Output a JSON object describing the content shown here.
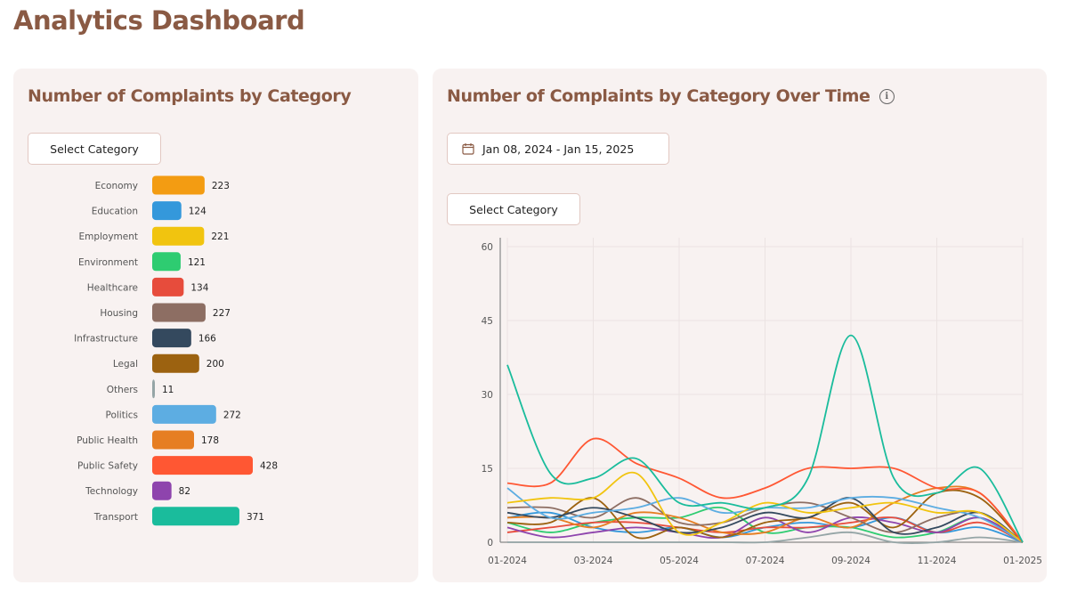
{
  "page": {
    "title": "Analytics Dashboard"
  },
  "left_card": {
    "title": "Number of Complaints by Category",
    "select_label": "Select Category"
  },
  "right_card": {
    "title": "Number of Complaints by Category Over Time",
    "date_range": "Jan 08, 2024 - Jan 15, 2025",
    "select_label": "Select Category"
  },
  "icons": {
    "info": "info-icon",
    "calendar": "calendar-icon"
  },
  "chart_data": [
    {
      "type": "bar",
      "orientation": "horizontal",
      "categories": [
        "Economy",
        "Education",
        "Employment",
        "Environment",
        "Healthcare",
        "Housing",
        "Infrastructure",
        "Legal",
        "Others",
        "Politics",
        "Public Health",
        "Public Safety",
        "Technology",
        "Transport"
      ],
      "values": [
        223,
        124,
        221,
        121,
        134,
        227,
        166,
        200,
        11,
        272,
        178,
        428,
        82,
        371
      ],
      "colors": [
        "#f39c12",
        "#3498db",
        "#f1c40f",
        "#2ecc71",
        "#e74c3c",
        "#8d6e63",
        "#34495e",
        "#9c6210",
        "#95a5a6",
        "#5dade2",
        "#e67e22",
        "#ff5733",
        "#8e44ad",
        "#1abc9c"
      ],
      "data_labels": true
    },
    {
      "type": "line",
      "x": [
        "2024-01",
        "2024-02",
        "2024-03",
        "2024-04",
        "2024-05",
        "2024-06",
        "2024-07",
        "2024-08",
        "2024-09",
        "2024-10",
        "2024-11",
        "2024-12",
        "2025-01"
      ],
      "x_tick_labels": [
        "01-2024",
        "03-2024",
        "05-2024",
        "07-2024",
        "09-2024",
        "11-2024",
        "01-2025"
      ],
      "ylim": [
        0,
        60
      ],
      "y_ticks": [
        0,
        15,
        30,
        45,
        60
      ],
      "grid": true,
      "series": [
        {
          "color": "#1abc9c",
          "values": [
            36,
            14,
            13,
            17,
            8,
            8,
            7,
            13,
            42,
            13,
            10,
            15,
            0
          ]
        },
        {
          "color": "#ff5733",
          "values": [
            12,
            12,
            21,
            16,
            13,
            9,
            11,
            15,
            15,
            15,
            11,
            10,
            0
          ]
        },
        {
          "color": "#f1c40f",
          "values": [
            8,
            9,
            9,
            14,
            2,
            4,
            8,
            6,
            7,
            8,
            6,
            6,
            0
          ]
        },
        {
          "color": "#5dade2",
          "values": [
            11,
            5,
            6,
            7,
            9,
            6,
            7,
            7,
            9,
            9,
            7,
            5,
            0
          ]
        },
        {
          "color": "#34495e",
          "values": [
            6,
            5,
            7,
            5,
            2,
            3,
            6,
            5,
            9,
            2,
            3,
            6,
            0
          ]
        },
        {
          "color": "#9c6210",
          "values": [
            4,
            4,
            9,
            1,
            3,
            1,
            4,
            5,
            8,
            3,
            10,
            9,
            0
          ]
        },
        {
          "color": "#8d6e63",
          "values": [
            7,
            7,
            5,
            9,
            4,
            4,
            7,
            8,
            5,
            2,
            5,
            6,
            0
          ]
        },
        {
          "color": "#e67e22",
          "values": [
            5,
            5,
            3,
            6,
            5,
            2,
            2,
            5,
            3,
            8,
            11,
            10,
            0
          ]
        },
        {
          "color": "#8e44ad",
          "values": [
            3,
            1,
            2,
            3,
            2,
            1,
            5,
            2,
            5,
            4,
            2,
            5,
            0
          ]
        },
        {
          "color": "#e74c3c",
          "values": [
            2,
            3,
            4,
            4,
            3,
            2,
            3,
            3,
            4,
            5,
            2,
            4,
            0
          ]
        },
        {
          "color": "#2ecc71",
          "values": [
            4,
            2,
            4,
            5,
            5,
            7,
            2,
            3,
            3,
            1,
            2,
            5,
            0
          ]
        },
        {
          "color": "#3498db",
          "values": [
            5,
            6,
            3,
            2,
            3,
            1,
            3,
            4,
            3,
            5,
            2,
            3,
            0
          ]
        },
        {
          "color": "#95a5a6",
          "values": [
            0,
            0,
            0,
            0,
            0,
            0,
            0,
            1,
            2,
            0,
            0,
            1,
            0
          ]
        }
      ]
    }
  ]
}
